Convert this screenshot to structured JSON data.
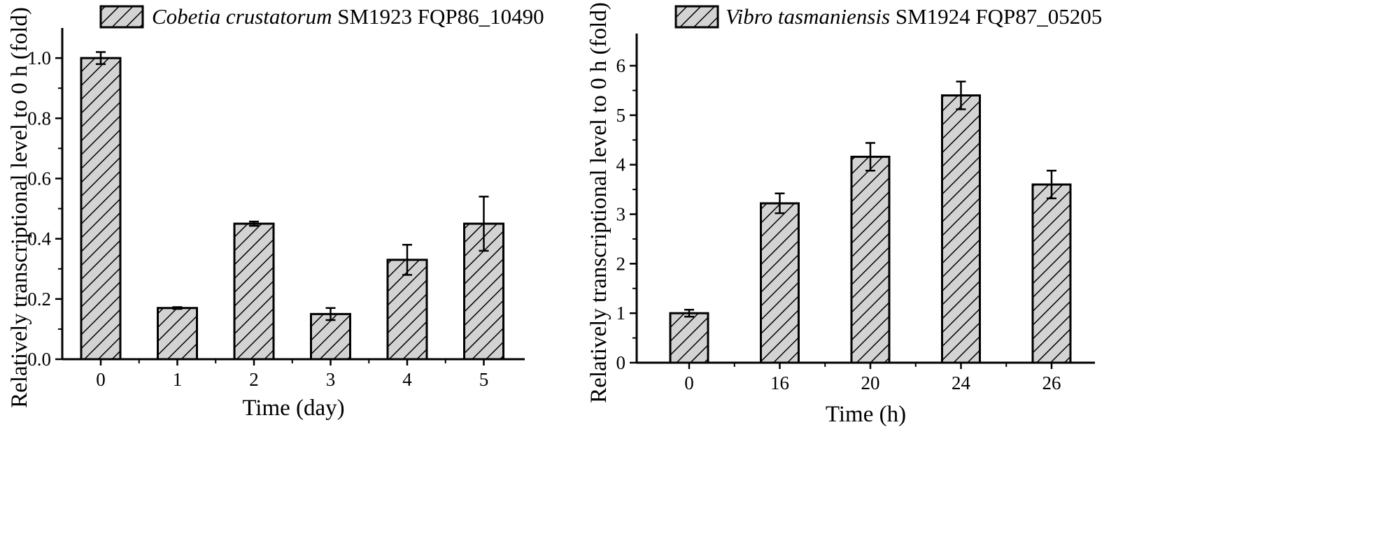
{
  "chart_data": [
    {
      "type": "bar",
      "legend": {
        "italic": "Cobetia crustatorum",
        "text": "SM1923 FQP86_10490",
        "placement": "top"
      },
      "xlabel": "Time (day)",
      "ylabel": "Relatively transcriptional level to 0 h (fold)",
      "categories": [
        "0",
        "1",
        "2",
        "3",
        "4",
        "5"
      ],
      "values": [
        1.0,
        0.17,
        0.45,
        0.15,
        0.33,
        0.45
      ],
      "errors": [
        0.02,
        0.003,
        0.007,
        0.02,
        0.05,
        0.09
      ],
      "ylim": [
        0,
        1.1
      ],
      "yticks": [
        "0.0",
        "0.2",
        "0.4",
        "0.6",
        "0.8",
        "1.0"
      ],
      "grid": false,
      "bar_fill": "hatched"
    },
    {
      "type": "bar",
      "legend": {
        "italic": "Vibro tasmaniensis",
        "text": "SM1924 FQP87_05205",
        "placement": "top"
      },
      "xlabel": "Time (h)",
      "ylabel": "Relatively transcriptional level to 0 h (fold)",
      "categories": [
        "0",
        "16",
        "20",
        "24",
        "26"
      ],
      "values": [
        1.0,
        3.22,
        4.16,
        5.4,
        3.6
      ],
      "errors": [
        0.07,
        0.2,
        0.28,
        0.28,
        0.28
      ],
      "ylim": [
        0,
        6.65
      ],
      "yticks": [
        "0",
        "1",
        "2",
        "3",
        "4",
        "5",
        "6"
      ],
      "grid": false,
      "bar_fill": "hatched"
    }
  ],
  "colors": {
    "bar_fill": "#d3d3d3",
    "hatch": "#000000",
    "axis": "#000000"
  }
}
